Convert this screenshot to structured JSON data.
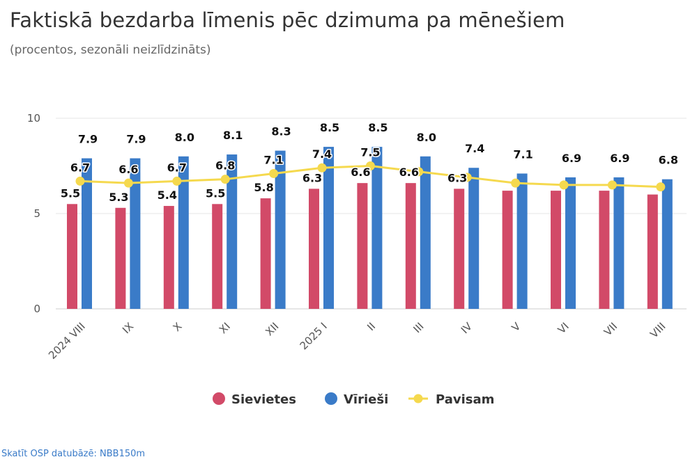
{
  "header": {
    "title": "Faktiskā bezdarba līmenis pēc dzimuma pa mēnešiem",
    "subtitle": "(procentos, sezonāli neizlīdzināts)"
  },
  "footer": {
    "link_text": "Skatīt OSP datubāzē: NBB150m"
  },
  "chart_data": {
    "type": "bar",
    "categories": [
      "2024 VIII",
      "IX",
      "X",
      "XI",
      "XII",
      "2025 I",
      "II",
      "III",
      "IV",
      "V",
      "VI",
      "VII",
      "VIII"
    ],
    "series": [
      {
        "name": "Sievietes",
        "kind": "bar",
        "color": "#d24a68",
        "values": [
          5.5,
          5.3,
          5.4,
          5.5,
          5.8,
          6.3,
          6.6,
          6.6,
          6.3,
          6.2,
          6.2,
          6.2,
          6.0
        ],
        "labels": [
          "5.5",
          "5.3",
          "5.4",
          "5.5",
          "5.8",
          "6.3",
          "6.6",
          "6.6",
          "6.3",
          "",
          "",
          "",
          ""
        ]
      },
      {
        "name": "Vīrieši",
        "kind": "bar",
        "color": "#3a7bc8",
        "values": [
          7.9,
          7.9,
          8.0,
          8.1,
          8.3,
          8.5,
          8.5,
          8.0,
          7.4,
          7.1,
          6.9,
          6.9,
          6.8
        ],
        "labels": [
          "7.9",
          "7.9",
          "8.0",
          "8.1",
          "8.3",
          "8.5",
          "8.5",
          "8.0",
          "7.4",
          "7.1",
          "6.9",
          "6.9",
          "6.8"
        ]
      },
      {
        "name": "Pavisam",
        "kind": "line",
        "color": "#f5d94e",
        "values": [
          6.7,
          6.6,
          6.7,
          6.8,
          7.1,
          7.4,
          7.5,
          7.2,
          6.9,
          6.6,
          6.5,
          6.5,
          6.4
        ],
        "labels": [
          "6.7",
          "6.6",
          "6.7",
          "6.8",
          "7.1",
          "7.4",
          "7.5",
          "",
          "",
          "",
          "",
          "",
          ""
        ]
      }
    ],
    "yaxis": {
      "ticks": [
        0,
        5,
        10
      ],
      "ylim": [
        0,
        10
      ]
    },
    "grid": true,
    "legend": "bottom-center"
  }
}
